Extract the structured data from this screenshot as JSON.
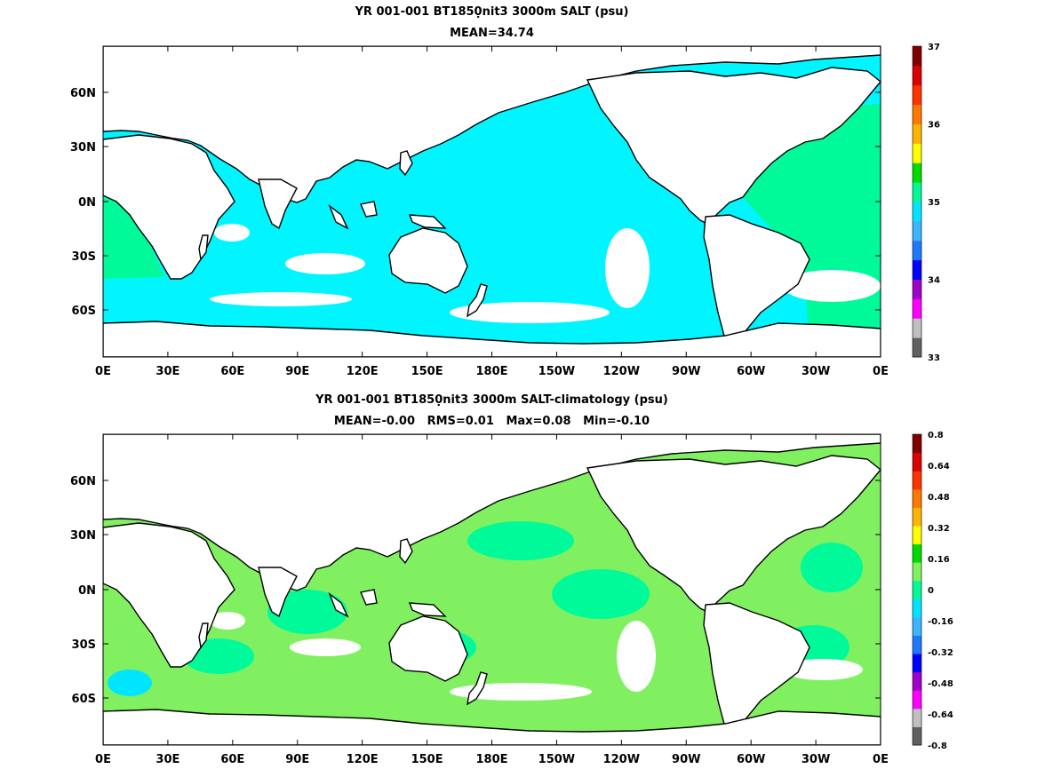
{
  "panels": [
    {
      "title": "YR 001-001 BT1850̣nit3 3000m SALT (psu)",
      "stats": "MEAN=34.74",
      "x_ticks": [
        "0E",
        "30E",
        "60E",
        "90E",
        "120E",
        "150E",
        "180E",
        "150W",
        "120W",
        "90W",
        "60W",
        "30W",
        "0E"
      ],
      "y_ticks": [
        "60N",
        "30N",
        "0N",
        "30S",
        "60S"
      ],
      "colorbar": {
        "labels": [
          "37",
          "36",
          "35",
          "34",
          "33"
        ],
        "colors_bottom_to_top": [
          "#606060",
          "#c0c0c0",
          "#ff00ff",
          "#a000c8",
          "#0000ff",
          "#1e78ff",
          "#3cb4ff",
          "#00e5ff",
          "#00fa9a",
          "#00dc00",
          "#ffff00",
          "#ffb400",
          "#ff7800",
          "#ff3200",
          "#dc0000",
          "#800000"
        ]
      }
    },
    {
      "title": "YR 001-001 BT1850̣nit3 3000m SALT-climatology (psu)",
      "stats": "MEAN=-0.00   RMS=0.01   Max=0.08   Min=-0.10",
      "x_ticks": [
        "0E",
        "30E",
        "60E",
        "90E",
        "120E",
        "150E",
        "180E",
        "150W",
        "120W",
        "90W",
        "60W",
        "30W",
        "0E"
      ],
      "y_ticks": [
        "60N",
        "30N",
        "0N",
        "30S",
        "60S"
      ],
      "colorbar": {
        "labels": [
          "0.8",
          "0.64",
          "0.48",
          "0.32",
          "0.16",
          "0",
          "-0.16",
          "-0.32",
          "-0.48",
          "-0.64",
          "-0.8"
        ],
        "colors_bottom_to_top": [
          "#606060",
          "#c0c0c0",
          "#ff00ff",
          "#a000c8",
          "#0000ff",
          "#1e78ff",
          "#3cb4ff",
          "#00e5ff",
          "#00fa9a",
          "#80f060",
          "#00dc00",
          "#ffff00",
          "#ffb400",
          "#ff7800",
          "#ff3200",
          "#dc0000",
          "#800000"
        ]
      }
    }
  ]
}
